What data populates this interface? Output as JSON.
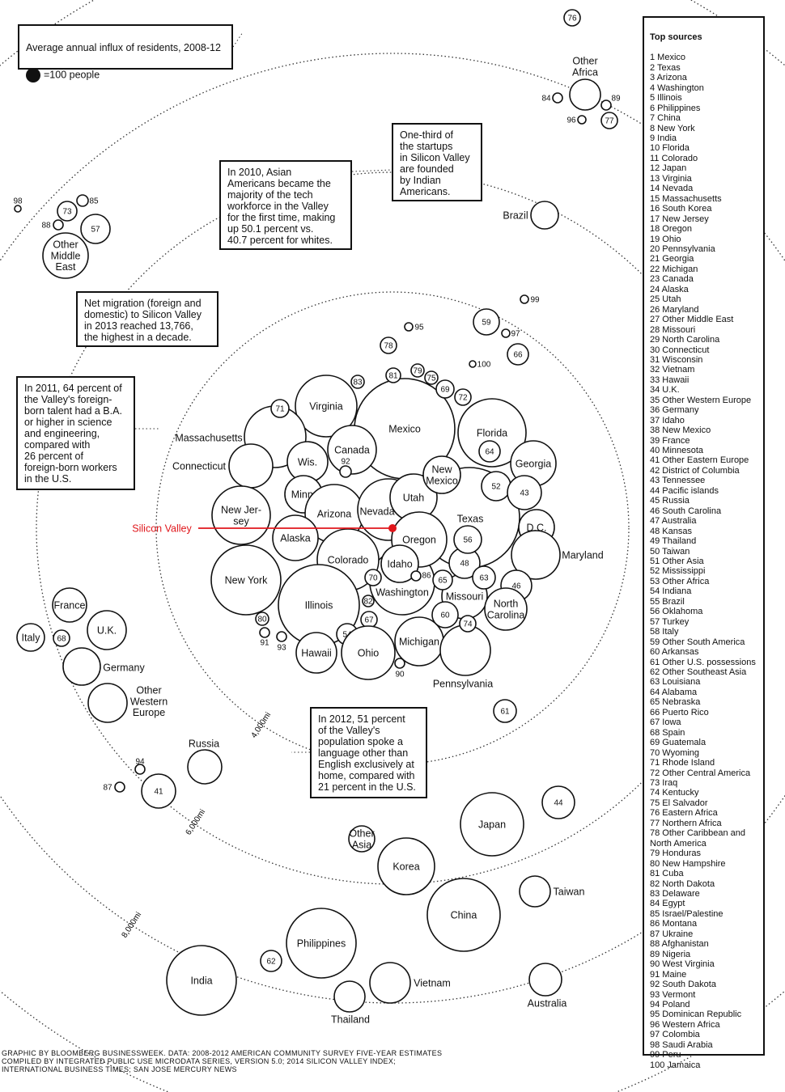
{
  "legend": {
    "title": "Average annual influx of residents, 2008-12",
    "unit": "=100 people"
  },
  "origin": {
    "label": "Silicon Valley",
    "color": "#e0161b"
  },
  "rings": [
    "4,000mi",
    "6,000mi",
    "8,000mi"
  ],
  "annotations": [
    "In 2010, Asian\nAmericans became the\nmajority of the tech\nworkforce in the Valley\nfor the first time, making\nup 50.1 percent vs.\n40.7 percent for whites.",
    "One-third of\nthe startups\nin Silicon Valley\nare founded\nby Indian\nAmericans.",
    "Net migration (foreign and\ndomestic) to Silicon Valley\nin 2013 reached 13,766,\nthe highest in a decade.",
    "In 2011, 64 percent of\nthe Valley's foreign-\nborn talent had a B.A.\nor higher in science\nand engineering,\ncompared with\n26 percent of\nforeign-born workers\nin the U.S.",
    "In 2012, 51 percent\nof the Valley's\npopulation spoke a\nlanguage other than\nEnglish exclusively at\nhome, compared with\n21 percent in the U.S."
  ],
  "circles": [
    "Mexico",
    "Texas",
    "Florida",
    "Georgia",
    "Virginia",
    "Massachusetts",
    "Connecticut",
    "Wis.",
    "Canada",
    "92",
    "Minn.",
    "Arizona",
    "Nevada",
    "Utah",
    "New\nMexico",
    "Washington",
    "Oregon",
    "New Jer-\nsey",
    "Alaska",
    "Colorado",
    "Idaho",
    "86",
    "70",
    "New York",
    "Illinois",
    "82",
    "67",
    "54",
    "Hawaii",
    "Ohio",
    "80",
    "91",
    "93",
    "Michigan",
    "90",
    "Pennsylvania",
    "Missouri",
    "60",
    "74",
    "65",
    "48",
    "56",
    "63",
    "52",
    "43",
    "64",
    "D.C.",
    "Maryland",
    "46",
    "North\nCarolina",
    "83",
    "71",
    "81",
    "79",
    "75",
    "69",
    "72",
    "78",
    "95",
    "59",
    "97",
    "100",
    "66",
    "99",
    "Brazil",
    "76",
    "Other\nAfrica",
    "84",
    "89",
    "96",
    "77",
    "Other\nMiddle\nEast",
    "57",
    "73",
    "85",
    "88",
    "98",
    "France",
    "U.K.",
    "Italy",
    "68",
    "Germany",
    "Other\nWestern\nEurope",
    "Russia",
    "94",
    "87",
    "41",
    "61",
    "44",
    "Japan",
    "Other\nAsia",
    "Korea",
    "Taiwan",
    "China",
    "Philippines",
    "62",
    "India",
    "Thailand",
    "Vietnam",
    "Australia"
  ],
  "sources": {
    "title": "Top sources",
    "items": [
      "1 Mexico",
      "2 Texas",
      "3 Arizona",
      "4 Washington",
      "5 Illinois",
      "6 Philippines",
      "7 China",
      "8 New York",
      "9 India",
      "10 Florida",
      "11 Colorado",
      "12 Japan",
      "13 Virginia",
      "14 Nevada",
      "15 Massachusetts",
      "16 South Korea",
      "17 New Jersey",
      "18 Oregon",
      "19 Ohio",
      "20 Pennsylvania",
      "21 Georgia",
      "22 Michigan",
      "23 Canada",
      "24 Alaska",
      "25 Utah",
      "26 Maryland",
      "27 Other Middle East",
      "28 Missouri",
      "29 North Carolina",
      "30 Connecticut",
      "31 Wisconsin",
      "32 Vietnam",
      "33 Hawaii",
      "34 U.K.",
      "35 Other Western Europe",
      "36 Germany",
      "37 Idaho",
      "38 New Mexico",
      "39 France",
      "40 Minnesota",
      "41 Other Eastern Europe",
      "42 District of Columbia",
      "43 Tennessee",
      "44 Pacific islands",
      "45 Russia",
      "46 South Carolina",
      "47 Australia",
      "48 Kansas",
      "49 Thailand",
      "50 Taiwan",
      "51 Other Asia",
      "52 Mississippi",
      "53 Other Africa",
      "54 Indiana",
      "55 Brazil",
      "56 Oklahoma",
      "57 Turkey",
      "58 Italy",
      "59 Other South America",
      "60 Arkansas",
      "61 Other U.S. possessions",
      "62 Other Southeast Asia",
      "63 Louisiana",
      "64 Alabama",
      "65 Nebraska",
      "66 Puerto Rico",
      "67 Iowa",
      "68 Spain",
      "69 Guatemala",
      "70 Wyoming",
      "71 Rhode Island",
      "72 Other Central America",
      "73 Iraq",
      "74 Kentucky",
      "75 El Salvador",
      "76 Eastern Africa",
      "77 Northern Africa",
      "78 Other Caribbean and\nNorth America",
      "79 Honduras",
      "80 New Hampshire",
      "81 Cuba",
      "82 North Dakota",
      "83 Delaware",
      "84 Egypt",
      "85 Israel/Palestine",
      "86 Montana",
      "87 Ukraine",
      "88 Afghanistan",
      "89 Nigeria",
      "90 West Virginia",
      "91 Maine",
      "92 South Dakota",
      "93 Vermont",
      "94 Poland",
      "95 Dominican Republic",
      "96 Western Africa",
      "97 Colombia",
      "98 Saudi Arabia",
      "99 Peru",
      "100 Jamaica"
    ]
  },
  "credit": "GRAPHIC BY BLOOMBERG BUSINESSWEEK. DATA: 2008-2012 AMERICAN COMMUNITY SURVEY FIVE-YEAR ESTIMATES\nCOMPILED BY INTEGRATED PUBLIC USE MICRODATA SERIES, VERSION 5.0; 2014  SILICON VALLEY INDEX;\nINTERNATIONAL BUSINESS TIMES; SAN JOSE MERCURY NEWS"
}
